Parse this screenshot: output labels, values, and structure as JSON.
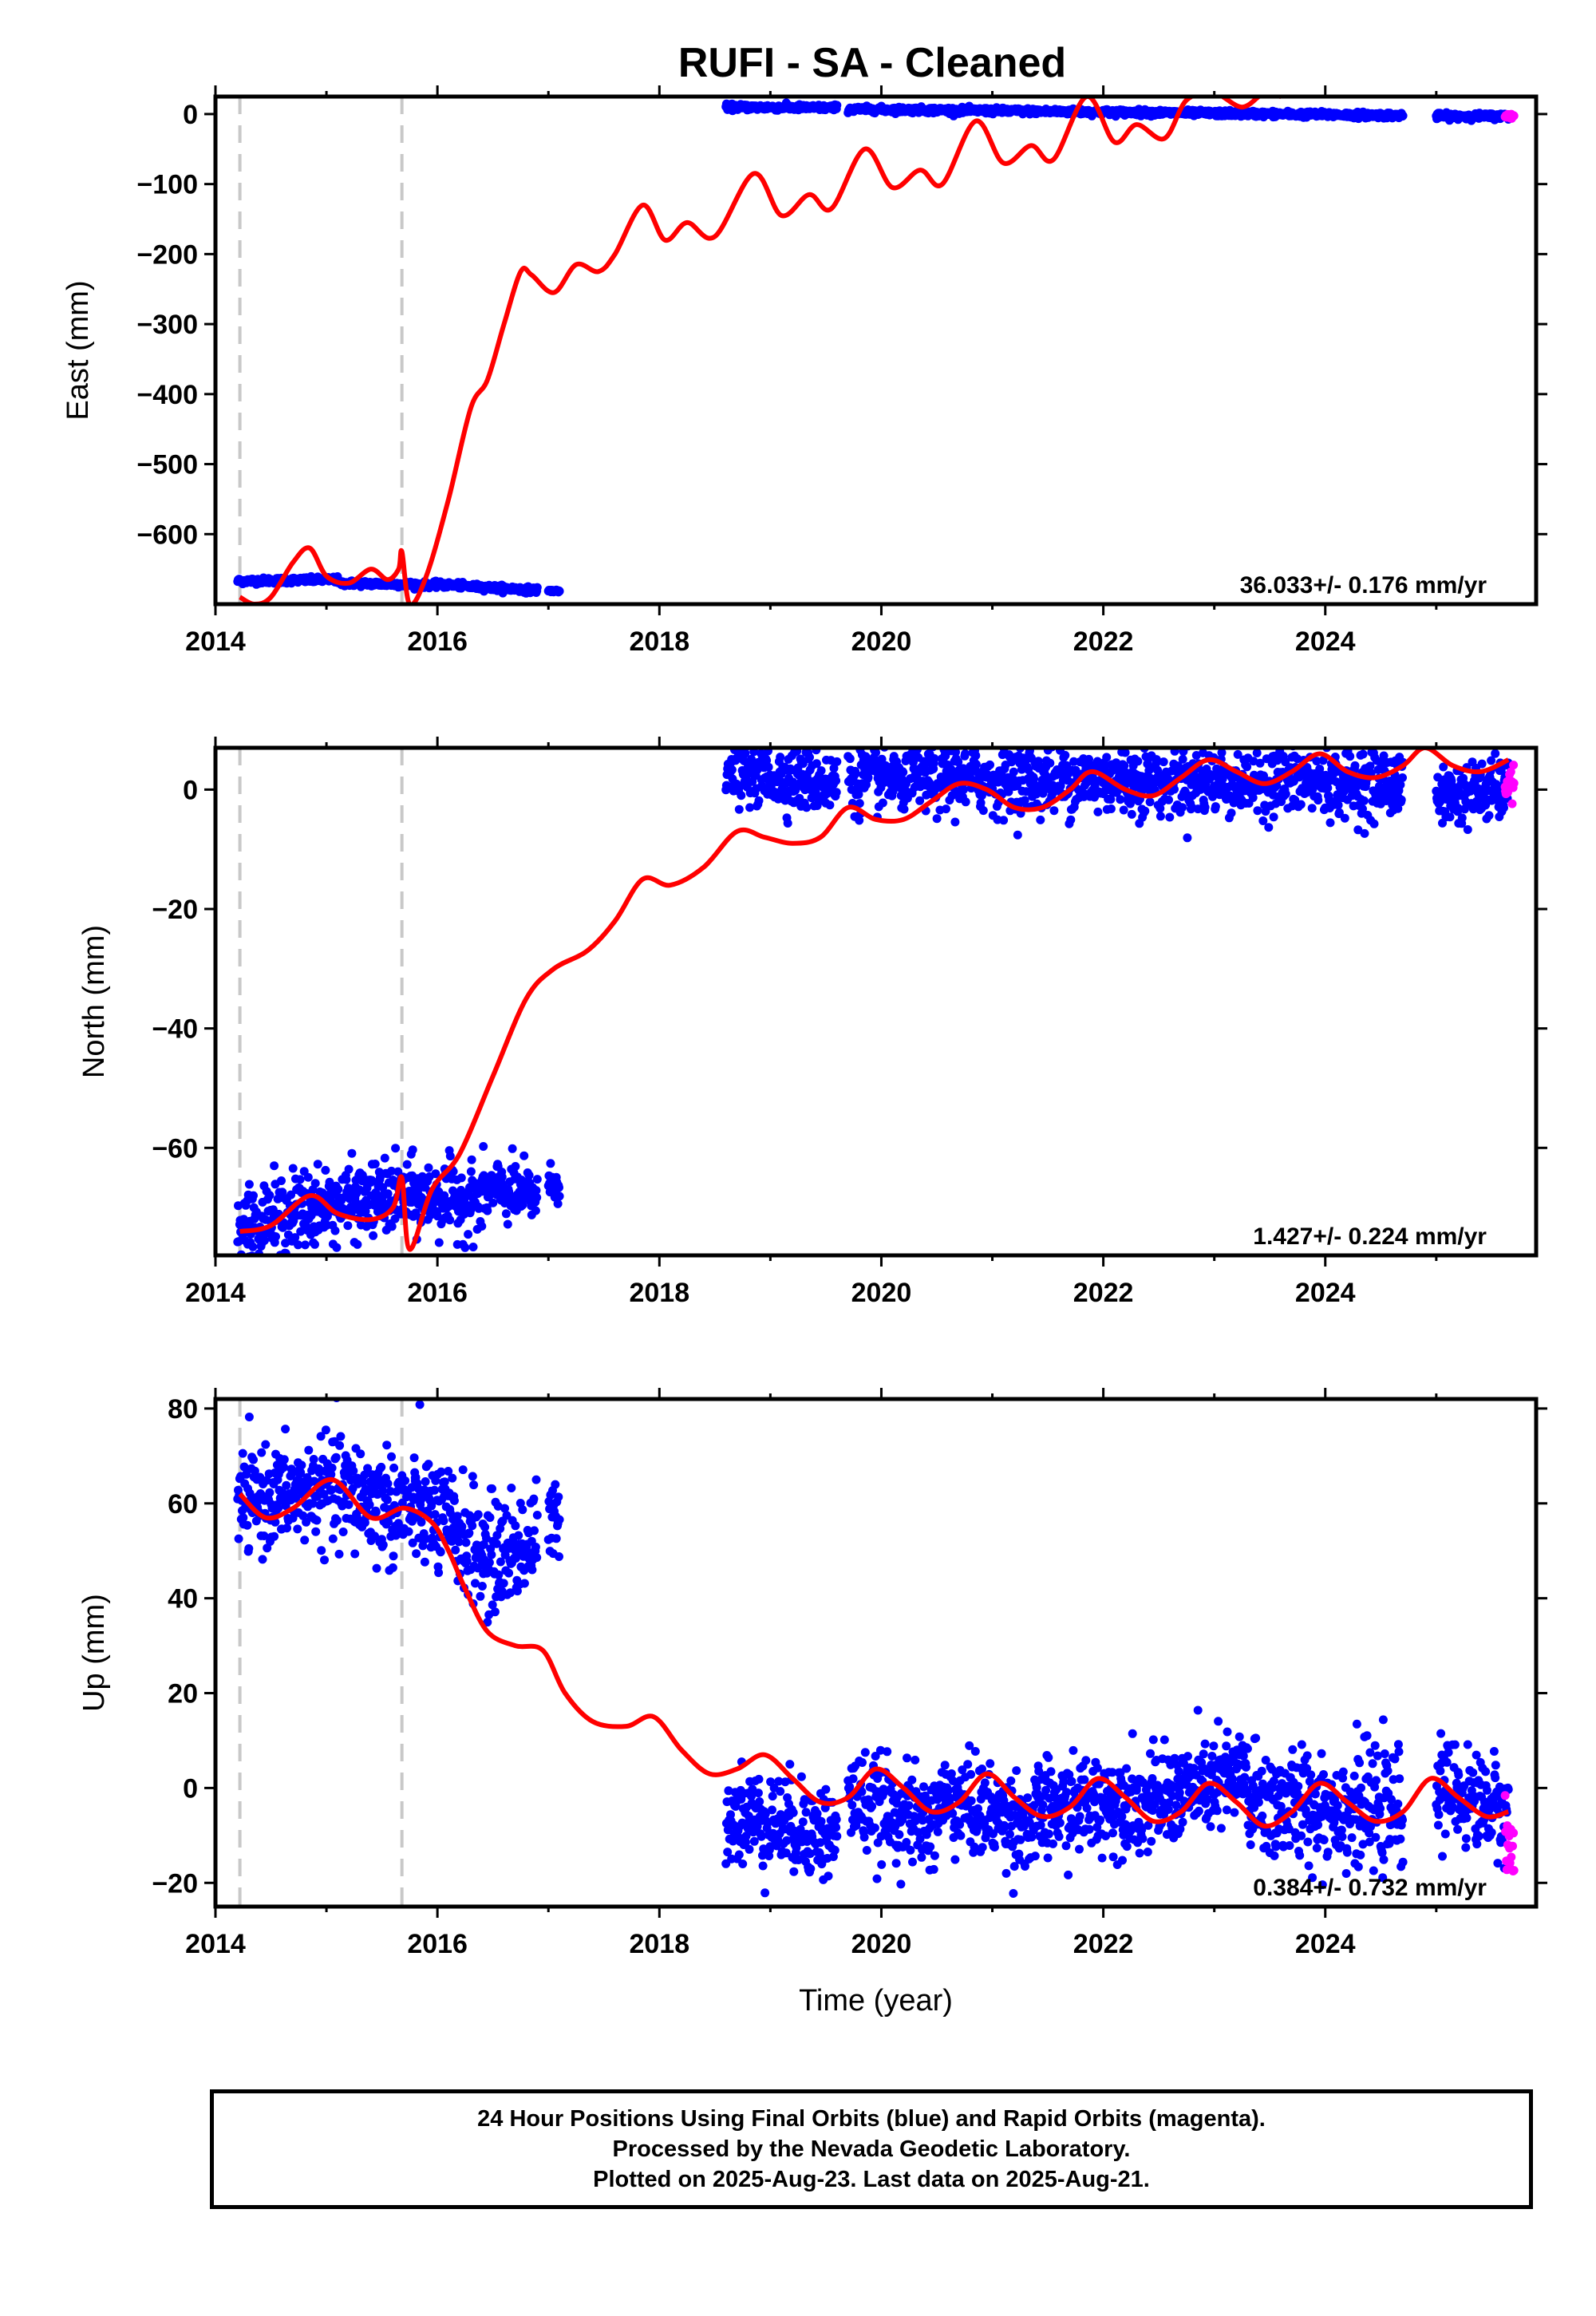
{
  "title": "RUFI  - SA - Cleaned",
  "footer": {
    "line1": "24 Hour Positions Using Final Orbits (blue) and Rapid Orbits (magenta).",
    "line2": "Processed by the Nevada Geodetic Laboratory.",
    "line3": "Plotted on 2025-Aug-23. Last data on 2025-Aug-21."
  },
  "colors": {
    "final": "#0000ff",
    "rapid": "#ff00ff",
    "model": "#ff0000",
    "steps": "#c8c8c8"
  },
  "chart_data": [
    {
      "type": "scatter",
      "component": "east",
      "ylabel": "East (mm)",
      "xlim": [
        2014.0,
        2025.9
      ],
      "ylim": [
        -700,
        25
      ],
      "xticks": [
        2014,
        2016,
        2018,
        2020,
        2022,
        2024
      ],
      "yticks": [
        0,
        -100,
        -200,
        -300,
        -400,
        -500,
        -600
      ],
      "step_lines": [
        2014.22,
        2015.68
      ],
      "rate": "36.033+/- 0.176 mm/yr",
      "final_segments": [
        {
          "x0": 2014.2,
          "x1": 2015.1,
          "y0": -667,
          "y1": -665,
          "noise": 2
        },
        {
          "x0": 2015.1,
          "x1": 2016.2,
          "y0": -670,
          "y1": -673,
          "noise": 2
        },
        {
          "x0": 2016.2,
          "x1": 2016.9,
          "y0": -674,
          "y1": -680,
          "noise": 2
        },
        {
          "x0": 2017.0,
          "x1": 2017.1,
          "y0": -681,
          "y1": -681,
          "noise": 1
        },
        {
          "x0": 2018.6,
          "x1": 2019.6,
          "y0": 10,
          "y1": 9,
          "noise": 2
        },
        {
          "x0": 2019.7,
          "x1": 2024.7,
          "y0": 7,
          "y1": -2,
          "noise": 2
        },
        {
          "x0": 2025.0,
          "x1": 2025.65,
          "y0": -3,
          "y1": -3,
          "noise": 2
        }
      ],
      "rapid_segments": [
        {
          "x0": 2025.62,
          "x1": 2025.7,
          "y0": -3,
          "y1": -3,
          "noise": 2
        }
      ],
      "model": {
        "x": [
          2014.22,
          2014.35,
          2014.5,
          2014.7,
          2014.85,
          2015.0,
          2015.2,
          2015.4,
          2015.55,
          2015.65,
          2015.68,
          2015.75,
          2015.9,
          2016.1,
          2016.3,
          2016.45,
          2016.6,
          2016.75,
          2016.85,
          2017.05,
          2017.25,
          2017.45,
          2017.6,
          2017.85,
          2018.05,
          2018.25,
          2018.5,
          2018.85,
          2019.1,
          2019.35,
          2019.55,
          2019.85,
          2020.1,
          2020.35,
          2020.55,
          2020.85,
          2021.1,
          2021.35,
          2021.55,
          2021.85,
          2022.1,
          2022.3,
          2022.55,
          2022.75,
          2023.0,
          2023.25,
          2023.45,
          2023.6
        ],
        "y": [
          -690,
          -700,
          -690,
          -640,
          -620,
          -660,
          -670,
          -650,
          -665,
          -650,
          -625,
          -700,
          -660,
          -550,
          -420,
          -380,
          -300,
          -225,
          -230,
          -255,
          -215,
          -225,
          -200,
          -130,
          -180,
          -155,
          -175,
          -85,
          -145,
          -115,
          -135,
          -50,
          -105,
          -80,
          -100,
          -10,
          -70,
          -45,
          -65,
          25,
          -40,
          -15,
          -35,
          20,
          30,
          10,
          30,
          25
        ]
      }
    },
    {
      "type": "scatter",
      "component": "north",
      "ylabel": "North (mm)",
      "xlim": [
        2014.0,
        2025.9
      ],
      "ylim": [
        -78,
        7
      ],
      "xticks": [
        2014,
        2016,
        2018,
        2020,
        2022,
        2024
      ],
      "yticks": [
        0,
        -20,
        -40,
        -60
      ],
      "step_lines": [
        2014.22,
        2015.68
      ],
      "rate": "1.427+/- 0.224 mm/yr",
      "final_segments": [
        {
          "x0": 2014.2,
          "x1": 2014.9,
          "y0": -74,
          "y1": -70,
          "noise": 3.5
        },
        {
          "x0": 2014.9,
          "x1": 2015.7,
          "y0": -70,
          "y1": -68,
          "noise": 3.0
        },
        {
          "x0": 2015.7,
          "x1": 2016.4,
          "y0": -68,
          "y1": -69,
          "noise": 3.0
        },
        {
          "x0": 2016.4,
          "x1": 2016.9,
          "y0": -67,
          "y1": -68,
          "noise": 2.5
        },
        {
          "x0": 2017.0,
          "x1": 2017.1,
          "y0": -66,
          "y1": -66,
          "noise": 1.5
        },
        {
          "x0": 2018.6,
          "x1": 2019.6,
          "y0": 3,
          "y1": 1,
          "noise": 2.5
        },
        {
          "x0": 2019.7,
          "x1": 2024.7,
          "y0": 2,
          "y1": 1,
          "noise": 2.8
        },
        {
          "x0": 2025.0,
          "x1": 2025.65,
          "y0": -1,
          "y1": 0,
          "noise": 2.5
        }
      ],
      "rapid_segments": [
        {
          "x0": 2025.62,
          "x1": 2025.7,
          "y0": 1,
          "y1": 1,
          "noise": 1.5
        }
      ],
      "model": {
        "x": [
          2014.22,
          2014.5,
          2014.85,
          2015.1,
          2015.4,
          2015.6,
          2015.68,
          2015.75,
          2015.95,
          2016.2,
          2016.5,
          2016.8,
          2017.05,
          2017.35,
          2017.6,
          2017.85,
          2018.1,
          2018.4,
          2018.7,
          2018.95,
          2019.2,
          2019.45,
          2019.7,
          2019.95,
          2020.2,
          2020.45,
          2020.7,
          2020.95,
          2021.2,
          2021.45,
          2021.7,
          2021.9,
          2022.2,
          2022.45,
          2022.7,
          2022.95,
          2023.2,
          2023.45,
          2023.7,
          2023.95,
          2024.2,
          2024.45,
          2024.7,
          2024.9,
          2025.15,
          2025.4,
          2025.65
        ],
        "y": [
          -74,
          -73,
          -68,
          -71,
          -72,
          -70,
          -65,
          -77,
          -67,
          -61,
          -48,
          -35,
          -30,
          -27,
          -22,
          -15,
          -16,
          -13,
          -7,
          -8,
          -9,
          -8,
          -3,
          -5,
          -5,
          -2,
          1,
          0,
          -3,
          -3,
          0,
          3,
          0,
          -1,
          2,
          5,
          3,
          1,
          3,
          6,
          3,
          2,
          4,
          7,
          4,
          3,
          5
        ]
      }
    },
    {
      "type": "scatter",
      "component": "up",
      "ylabel": "Up (mm)",
      "xlabel": "Time (year)",
      "xlim": [
        2014.0,
        2025.9
      ],
      "ylim": [
        -25,
        82
      ],
      "xticks": [
        2014,
        2016,
        2018,
        2020,
        2022,
        2024
      ],
      "yticks": [
        80,
        60,
        40,
        20,
        0,
        -20
      ],
      "step_lines": [
        2014.22,
        2015.68
      ],
      "rate": "0.384+/- 0.732 mm/yr",
      "final_segments": [
        {
          "x0": 2014.2,
          "x1": 2015.0,
          "y0": 60,
          "y1": 63,
          "noise": 5
        },
        {
          "x0": 2015.0,
          "x1": 2015.8,
          "y0": 63,
          "y1": 58,
          "noise": 6
        },
        {
          "x0": 2015.8,
          "x1": 2016.4,
          "y0": 60,
          "y1": 50,
          "noise": 6
        },
        {
          "x0": 2016.4,
          "x1": 2016.9,
          "y0": 48,
          "y1": 52,
          "noise": 6
        },
        {
          "x0": 2017.0,
          "x1": 2017.1,
          "y0": 56,
          "y1": 56,
          "noise": 4
        },
        {
          "x0": 2018.6,
          "x1": 2019.6,
          "y0": -5,
          "y1": -10,
          "noise": 5
        },
        {
          "x0": 2019.7,
          "x1": 2020.5,
          "y0": -2,
          "y1": -8,
          "noise": 5
        },
        {
          "x0": 2020.5,
          "x1": 2021.4,
          "y0": -2,
          "y1": -8,
          "noise": 5
        },
        {
          "x0": 2021.4,
          "x1": 2022.3,
          "y0": -5,
          "y1": -2,
          "noise": 5
        },
        {
          "x0": 2022.3,
          "x1": 2023.3,
          "y0": -4,
          "y1": 3,
          "noise": 5
        },
        {
          "x0": 2023.3,
          "x1": 2024.7,
          "y0": -3,
          "y1": -5,
          "noise": 6
        },
        {
          "x0": 2025.0,
          "x1": 2025.65,
          "y0": 0,
          "y1": -5,
          "noise": 5
        }
      ],
      "rapid_segments": [
        {
          "x0": 2025.62,
          "x1": 2025.7,
          "y0": -12,
          "y1": -15,
          "noise": 6
        }
      ],
      "model": {
        "x": [
          2014.22,
          2014.45,
          2014.7,
          2015.05,
          2015.4,
          2015.7,
          2015.95,
          2016.1,
          2016.25,
          2016.45,
          2016.7,
          2016.95,
          2017.15,
          2017.4,
          2017.7,
          2017.95,
          2018.2,
          2018.45,
          2018.7,
          2018.95,
          2019.2,
          2019.45,
          2019.7,
          2019.95,
          2020.2,
          2020.45,
          2020.7,
          2020.95,
          2021.2,
          2021.45,
          2021.7,
          2021.95,
          2022.2,
          2022.45,
          2022.7,
          2022.95,
          2023.2,
          2023.45,
          2023.7,
          2023.95,
          2024.2,
          2024.45,
          2024.7,
          2024.95,
          2025.2,
          2025.45,
          2025.65
        ],
        "y": [
          62,
          57,
          59,
          65,
          57,
          59,
          56,
          50,
          42,
          33,
          30,
          29,
          20,
          14,
          13,
          15,
          8,
          3,
          4,
          7,
          2,
          -3,
          -2,
          4,
          0,
          -5,
          -3,
          3,
          -2,
          -6,
          -4,
          2,
          -2,
          -7,
          -5,
          1,
          -3,
          -8,
          -5,
          1,
          -3,
          -7,
          -5,
          2,
          -2,
          -6,
          -5
        ]
      }
    }
  ],
  "panels_tick_year_labels": [
    "2014",
    "2016",
    "2018",
    "2020",
    "2022",
    "2024"
  ]
}
